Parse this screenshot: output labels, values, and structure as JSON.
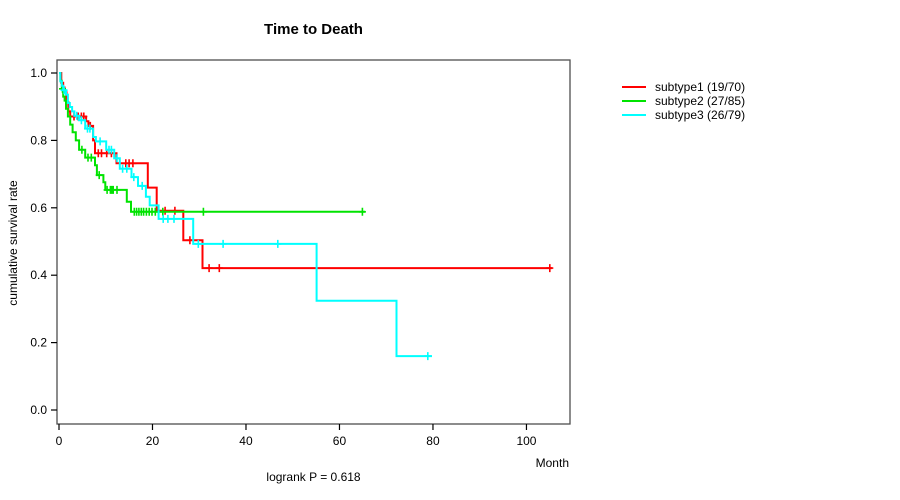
{
  "title": "Time to Death",
  "annotation": "logrank P = 0.618",
  "axes": {
    "x": {
      "label": "Month",
      "ticks": [
        "0",
        "20",
        "40",
        "60",
        "80",
        "100"
      ]
    },
    "y": {
      "label": "cumulative survival rate",
      "ticks": [
        "1.0",
        "0.8",
        "0.6",
        "0.4",
        "0.2",
        "0.0"
      ]
    }
  },
  "legend": [
    {
      "id": "subtype1",
      "label": "subtype1 (19/70)",
      "color": "#ff0000"
    },
    {
      "id": "subtype2",
      "label": "subtype2 (27/85)",
      "color": "#00e300"
    },
    {
      "id": "subtype3",
      "label": "subtype3 (26/79)",
      "color": "#00ffff"
    }
  ],
  "chart_data": {
    "type": "line",
    "subtype": "kaplan-meier-step",
    "title": "Time to Death",
    "xlabel": "Month",
    "ylabel": "cumulative survival rate",
    "xlim": [
      0,
      109
    ],
    "ylim": [
      0.0,
      1.0
    ],
    "x_ticks": [
      0,
      20,
      40,
      60,
      80,
      100
    ],
    "y_ticks": [
      1.0,
      0.8,
      0.6,
      0.4,
      0.2,
      0.0
    ],
    "grid": false,
    "legend_position": "right-outside",
    "annotation": "logrank P = 0.618",
    "series": [
      {
        "id": "subtype1",
        "name": "subtype1 (19/70)",
        "events": 19,
        "n": 70,
        "color": "#ff0000",
        "steps": [
          [
            0,
            1.0
          ],
          [
            0.5,
            0.971
          ],
          [
            0.9,
            0.957
          ],
          [
            1.2,
            0.943
          ],
          [
            1.6,
            0.914
          ],
          [
            2.0,
            0.886
          ],
          [
            2.4,
            0.871
          ],
          [
            5.8,
            0.857
          ],
          [
            6.3,
            0.843
          ],
          [
            7.3,
            0.8
          ],
          [
            7.7,
            0.762
          ],
          [
            12.3,
            0.732
          ],
          [
            19.0,
            0.66
          ],
          [
            20.9,
            0.591
          ],
          [
            26.6,
            0.504
          ],
          [
            30.7,
            0.421
          ]
        ],
        "end_month": 105.5,
        "censors": [
          [
            3.2,
            0.871
          ],
          [
            4.1,
            0.871
          ],
          [
            4.8,
            0.871
          ],
          [
            5.3,
            0.871
          ],
          [
            6.7,
            0.843
          ],
          [
            8.4,
            0.762
          ],
          [
            9.1,
            0.762
          ],
          [
            10.2,
            0.762
          ],
          [
            11.2,
            0.762
          ],
          [
            14.3,
            0.732
          ],
          [
            15.0,
            0.732
          ],
          [
            15.8,
            0.732
          ],
          [
            22.7,
            0.591
          ],
          [
            24.8,
            0.591
          ],
          [
            28.0,
            0.504
          ],
          [
            32.1,
            0.421
          ],
          [
            34.3,
            0.421
          ],
          [
            105.0,
            0.421
          ]
        ]
      },
      {
        "id": "subtype2",
        "name": "subtype2 (27/85)",
        "events": 27,
        "n": 85,
        "color": "#00e300",
        "steps": [
          [
            0,
            1.0
          ],
          [
            0.3,
            0.977
          ],
          [
            0.6,
            0.953
          ],
          [
            0.9,
            0.93
          ],
          [
            1.2,
            0.918
          ],
          [
            1.5,
            0.894
          ],
          [
            1.9,
            0.871
          ],
          [
            2.4,
            0.847
          ],
          [
            2.9,
            0.824
          ],
          [
            3.6,
            0.8
          ],
          [
            4.3,
            0.772
          ],
          [
            5.6,
            0.749
          ],
          [
            7.7,
            0.726
          ],
          [
            8.1,
            0.697
          ],
          [
            9.5,
            0.676
          ],
          [
            9.9,
            0.653
          ],
          [
            14.5,
            0.618
          ],
          [
            15.4,
            0.588
          ]
        ],
        "end_month": 65.5,
        "censors": [
          [
            0.75,
            0.953
          ],
          [
            4.9,
            0.772
          ],
          [
            6.2,
            0.749
          ],
          [
            6.9,
            0.749
          ],
          [
            8.6,
            0.697
          ],
          [
            10.3,
            0.653
          ],
          [
            11.0,
            0.653
          ],
          [
            11.3,
            0.653
          ],
          [
            11.6,
            0.653
          ],
          [
            12.4,
            0.653
          ],
          [
            16.1,
            0.588
          ],
          [
            16.6,
            0.588
          ],
          [
            17.1,
            0.588
          ],
          [
            17.6,
            0.588
          ],
          [
            18.1,
            0.588
          ],
          [
            18.7,
            0.588
          ],
          [
            19.3,
            0.588
          ],
          [
            19.9,
            0.588
          ],
          [
            20.6,
            0.588
          ],
          [
            21.3,
            0.588
          ],
          [
            22.2,
            0.588
          ],
          [
            30.9,
            0.588
          ],
          [
            64.9,
            0.588
          ]
        ]
      },
      {
        "id": "subtype3",
        "name": "subtype3 (26/79)",
        "events": 26,
        "n": 79,
        "color": "#00ffff",
        "steps": [
          [
            0,
            1.0
          ],
          [
            0.3,
            0.975
          ],
          [
            0.6,
            0.962
          ],
          [
            0.9,
            0.949
          ],
          [
            1.5,
            0.936
          ],
          [
            1.9,
            0.911
          ],
          [
            2.3,
            0.899
          ],
          [
            2.8,
            0.886
          ],
          [
            3.3,
            0.873
          ],
          [
            4.3,
            0.86
          ],
          [
            5.6,
            0.835
          ],
          [
            7.3,
            0.81
          ],
          [
            7.9,
            0.797
          ],
          [
            10.1,
            0.772
          ],
          [
            11.8,
            0.747
          ],
          [
            13.0,
            0.716
          ],
          [
            15.5,
            0.691
          ],
          [
            16.9,
            0.665
          ],
          [
            18.6,
            0.633
          ],
          [
            19.4,
            0.607
          ],
          [
            21.3,
            0.567
          ],
          [
            28.7,
            0.493
          ],
          [
            55.1,
            0.324
          ],
          [
            72.2,
            0.16
          ]
        ],
        "end_month": 79.8,
        "censors": [
          [
            1.1,
            0.949
          ],
          [
            3.8,
            0.873
          ],
          [
            4.8,
            0.86
          ],
          [
            6.1,
            0.835
          ],
          [
            6.6,
            0.835
          ],
          [
            8.8,
            0.797
          ],
          [
            10.7,
            0.772
          ],
          [
            11.2,
            0.772
          ],
          [
            12.4,
            0.747
          ],
          [
            13.6,
            0.716
          ],
          [
            14.5,
            0.716
          ],
          [
            16.0,
            0.691
          ],
          [
            17.8,
            0.665
          ],
          [
            22.3,
            0.567
          ],
          [
            23.3,
            0.567
          ],
          [
            24.6,
            0.567
          ],
          [
            29.8,
            0.493
          ],
          [
            35.1,
            0.493
          ],
          [
            46.8,
            0.493
          ],
          [
            78.9,
            0.16
          ]
        ]
      }
    ]
  }
}
